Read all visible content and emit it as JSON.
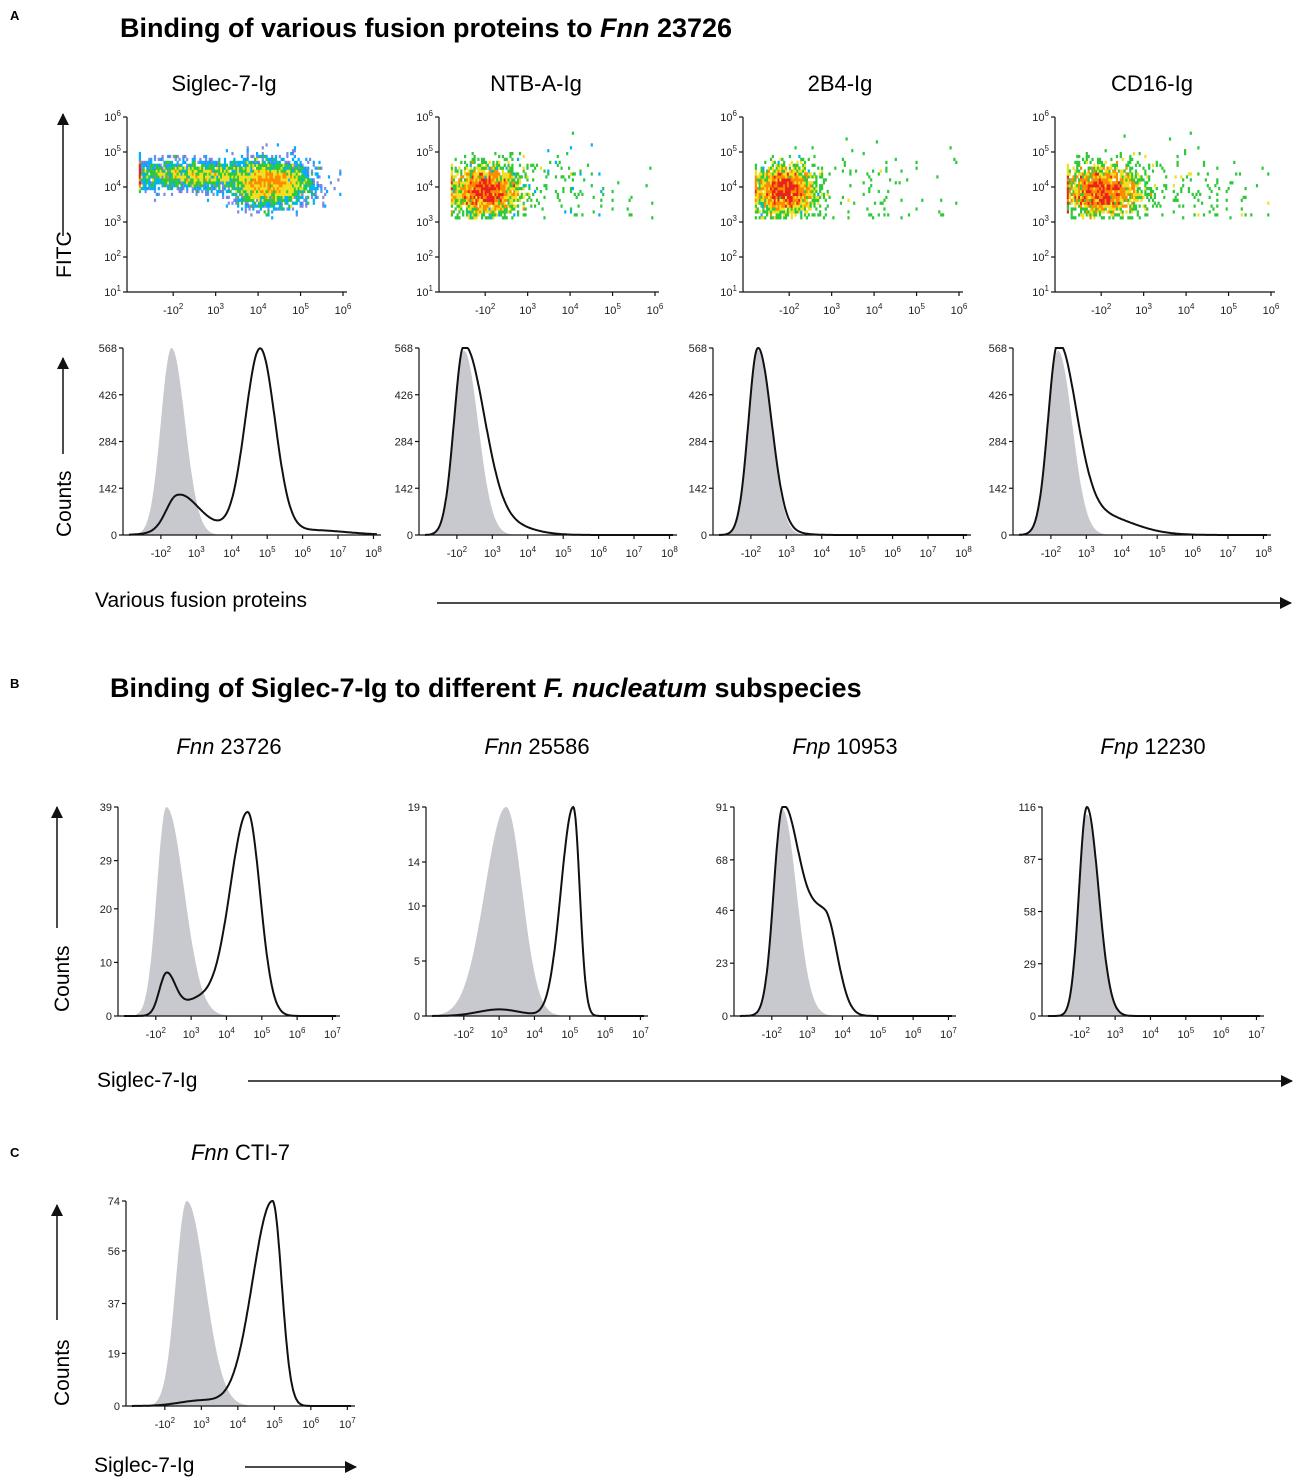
{
  "panels": [
    {
      "id": "A",
      "title": "Binding of various fusion proteins to Fnn 23726",
      "title_parts": [
        "Binding of various fusion proteins to ",
        "Fnn",
        " 23726"
      ],
      "x_axis_label": "Various fusion proteins"
    },
    {
      "id": "B",
      "title": "Binding of Siglec-7-Ig to different F. nucleatum subspecies",
      "title_parts": [
        "Binding of Siglec-7-Ig to different ",
        "F. nucleatum",
        " subspecies"
      ],
      "x_axis_label": "Siglec-7-Ig"
    },
    {
      "id": "C",
      "title": "",
      "x_axis_label": "Siglec-7-Ig"
    }
  ],
  "chart_data": [
    {
      "panel": "A",
      "type": "scatter",
      "style": "density-dot-plot",
      "ylabel": "FITC",
      "xscale": "biexponential",
      "yscale": "log",
      "x_ticks": [
        "-10^2",
        "10^3",
        "10^4",
        "10^5",
        "10^6"
      ],
      "y_ticks": [
        "10^1",
        "10^2",
        "10^3",
        "10^4",
        "10^5",
        "10^6"
      ],
      "colormap": [
        "#1a2ccf",
        "#00b0ff",
        "#2ec93a",
        "#f0e020",
        "#ff8a00",
        "#e8231c"
      ],
      "plots": [
        {
          "title": "Siglec-7-Ig",
          "events": [
            {
              "x": 2.4,
              "y": 4.35,
              "sx": 1.0,
              "sy": 0.2,
              "w": 0.4
            },
            {
              "x": 4.3,
              "y": 4.1,
              "sx": 0.45,
              "sy": 0.3,
              "w": 0.6
            }
          ]
        },
        {
          "title": "NTB-A-Ig",
          "events": [
            {
              "x": 2.0,
              "y": 3.9,
              "sx": 0.4,
              "sy": 0.35,
              "w": 0.93
            },
            {
              "x": 3.3,
              "y": 4.0,
              "sx": 1.2,
              "sy": 0.6,
              "w": 0.07
            }
          ]
        },
        {
          "title": "2B4-Ig",
          "events": [
            {
              "x": 1.9,
              "y": 3.9,
              "sx": 0.35,
              "sy": 0.33,
              "w": 0.95
            },
            {
              "x": 3.3,
              "y": 4.0,
              "sx": 1.3,
              "sy": 0.7,
              "w": 0.05
            }
          ]
        },
        {
          "title": "CD16-Ig",
          "events": [
            {
              "x": 2.0,
              "y": 3.9,
              "sx": 0.45,
              "sy": 0.35,
              "w": 0.9
            },
            {
              "x": 3.4,
              "y": 4.0,
              "sx": 1.1,
              "sy": 0.6,
              "w": 0.1
            }
          ]
        }
      ]
    },
    {
      "panel": "A",
      "type": "area",
      "style": "histogram-overlay",
      "ylabel": "Counts",
      "xscale": "biexponential",
      "x_ticks": [
        "-10^2",
        "10^3",
        "10^4",
        "10^5",
        "10^6",
        "10^7",
        "10^8"
      ],
      "xlim": [
        1.1,
        8.1
      ],
      "y_ticks": [
        0,
        142,
        284,
        426,
        568
      ],
      "ylim": [
        0,
        568
      ],
      "series": [
        {
          "role": "control",
          "fill": "#c8c9ce"
        },
        {
          "role": "fusion protein",
          "stroke": "#111111"
        }
      ],
      "plots": [
        {
          "title": "Siglec-7-Ig",
          "control": [
            {
              "m": 2.3,
              "sl": 0.3,
              "sr": 0.38,
              "a": 568
            }
          ],
          "sample": [
            {
              "m": 2.45,
              "sl": 0.3,
              "sr": 0.5,
              "a": 92
            },
            {
              "m": 3.0,
              "sl": 0.7,
              "sr": 0.7,
              "a": 40
            },
            {
              "m": 4.8,
              "sl": 0.42,
              "sr": 0.42,
              "a": 560
            },
            {
              "m": 6.2,
              "sl": 1.0,
              "sr": 1.0,
              "a": 15
            }
          ]
        },
        {
          "title": "NTB-A-Ig",
          "control": [
            {
              "m": 2.2,
              "sl": 0.28,
              "sr": 0.4,
              "a": 560
            }
          ],
          "sample": [
            {
              "m": 2.2,
              "sl": 0.28,
              "sr": 0.55,
              "a": 568
            },
            {
              "m": 3.1,
              "sl": 0.5,
              "sr": 0.8,
              "a": 40
            }
          ]
        },
        {
          "title": "2B4-Ig",
          "control": [
            {
              "m": 2.2,
              "sl": 0.27,
              "sr": 0.37,
              "a": 560
            }
          ],
          "sample": [
            {
              "m": 2.2,
              "sl": 0.27,
              "sr": 0.38,
              "a": 568
            },
            {
              "m": 2.9,
              "sl": 0.3,
              "sr": 0.5,
              "a": 8
            }
          ]
        },
        {
          "title": "CD16-Ig",
          "control": [
            {
              "m": 2.2,
              "sl": 0.28,
              "sr": 0.4,
              "a": 560
            }
          ],
          "sample": [
            {
              "m": 2.2,
              "sl": 0.28,
              "sr": 0.5,
              "a": 568
            },
            {
              "m": 3.2,
              "sl": 0.6,
              "sr": 1.0,
              "a": 65
            }
          ]
        }
      ]
    },
    {
      "panel": "B",
      "type": "area",
      "style": "histogram-overlay",
      "ylabel": "Counts",
      "xscale": "biexponential",
      "x_ticks": [
        "-10^2",
        "10^3",
        "10^4",
        "10^5",
        "10^6",
        "10^7"
      ],
      "xlim": [
        1.1,
        7.1
      ],
      "series": [
        {
          "role": "control",
          "fill": "#c8c9ce"
        },
        {
          "role": "Siglec-7-Ig",
          "stroke": "#111111"
        }
      ],
      "plots": [
        {
          "title": "Fnn 23726",
          "title_parts": [
            "Fnn",
            " 23726"
          ],
          "y_ticks": [
            0,
            10,
            20,
            29,
            39
          ],
          "ylim": [
            0,
            39
          ],
          "control": [
            {
              "m": 2.3,
              "sl": 0.27,
              "sr": 0.5,
              "a": 39
            }
          ],
          "sample": [
            {
              "m": 2.3,
              "sl": 0.2,
              "sr": 0.25,
              "a": 7.5
            },
            {
              "m": 3.2,
              "sl": 0.5,
              "sr": 0.5,
              "a": 3
            },
            {
              "m": 4.6,
              "sl": 0.5,
              "sr": 0.35,
              "a": 38
            }
          ]
        },
        {
          "title": "Fnn 25586",
          "title_parts": [
            "Fnn",
            " 25586"
          ],
          "y_ticks": [
            0,
            5,
            10,
            14,
            19
          ],
          "ylim": [
            0,
            19
          ],
          "control": [
            {
              "m": 3.2,
              "sl": 0.6,
              "sr": 0.45,
              "a": 19
            }
          ],
          "sample": [
            {
              "m": 3.0,
              "sl": 0.6,
              "sr": 0.6,
              "a": 0.6
            },
            {
              "m": 5.1,
              "sl": 0.35,
              "sr": 0.18,
              "a": 19
            }
          ]
        },
        {
          "title": "Fnp 10953",
          "title_parts": [
            "Fnp",
            " 10953"
          ],
          "y_ticks": [
            0,
            23,
            46,
            68,
            91
          ],
          "ylim": [
            0,
            91
          ],
          "control": [
            {
              "m": 2.3,
              "sl": 0.25,
              "sr": 0.4,
              "a": 90
            }
          ],
          "sample": [
            {
              "m": 2.3,
              "sl": 0.25,
              "sr": 0.45,
              "a": 85
            },
            {
              "m": 3.5,
              "sl": 0.6,
              "sr": 0.35,
              "a": 44
            }
          ]
        },
        {
          "title": "Fnp 12230",
          "title_parts": [
            "Fnp",
            " 12230"
          ],
          "y_ticks": [
            0,
            29,
            58,
            87,
            116
          ],
          "ylim": [
            0,
            116
          ],
          "control": [
            {
              "m": 2.2,
              "sl": 0.22,
              "sr": 0.32,
              "a": 112
            }
          ],
          "sample": [
            {
              "m": 2.2,
              "sl": 0.22,
              "sr": 0.33,
              "a": 116
            }
          ]
        }
      ]
    },
    {
      "panel": "C",
      "type": "area",
      "style": "histogram-overlay",
      "ylabel": "Counts",
      "xscale": "biexponential",
      "x_ticks": [
        "-10^2",
        "10^3",
        "10^4",
        "10^5",
        "10^6",
        "10^7"
      ],
      "xlim": [
        1.1,
        7.1
      ],
      "series": [
        {
          "role": "control",
          "fill": "#c8c9ce"
        },
        {
          "role": "Siglec-7-Ig",
          "stroke": "#111111"
        }
      ],
      "plots": [
        {
          "title": "Fnn CTI-7",
          "title_parts": [
            "Fnn",
            " CTI-7"
          ],
          "y_ticks": [
            0,
            19,
            37,
            56,
            74
          ],
          "ylim": [
            0,
            74
          ],
          "control": [
            {
              "m": 2.6,
              "sl": 0.3,
              "sr": 0.5,
              "a": 74
            }
          ],
          "sample": [
            {
              "m": 3.0,
              "sl": 0.6,
              "sr": 0.6,
              "a": 2
            },
            {
              "m": 4.95,
              "sl": 0.55,
              "sr": 0.25,
              "a": 74
            }
          ]
        }
      ]
    }
  ]
}
